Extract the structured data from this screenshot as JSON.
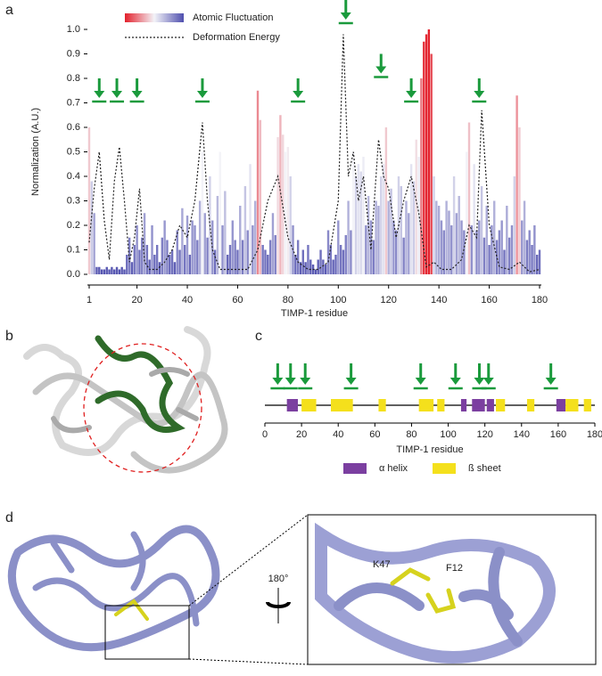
{
  "chart_data": [
    {
      "type": "bar",
      "x_label": "TIMP-1 residue",
      "y_label": "Normalization (A.U.)",
      "xlim": [
        1,
        180
      ],
      "xticks": [
        1,
        20,
        40,
        60,
        80,
        100,
        120,
        140,
        160,
        180
      ],
      "ylim": [
        0,
        1
      ],
      "yticks": [
        {
          "value": 0,
          "label": "0.0"
        },
        {
          "value": 0.1,
          "label": "0.1"
        },
        {
          "value": 0.2,
          "label": "0.2"
        },
        {
          "value": 0.3,
          "label": "0.3"
        },
        {
          "value": 0.4,
          "label": "0.4"
        },
        {
          "value": 0.5,
          "label": "0.5"
        },
        {
          "value": 0.6,
          "label": "0.6"
        },
        {
          "value": 0.7,
          "label": "0.7"
        },
        {
          "value": 0.8,
          "label": "0.8"
        },
        {
          "value": 0.9,
          "label": "0.9"
        },
        {
          "value": 1,
          "label": "1.0"
        }
      ],
      "legend": "top-left",
      "arrow_color": "#1a9a3c",
      "arrows": {
        "x": [
          5,
          12,
          20,
          46,
          84,
          103,
          117,
          129,
          156
        ],
        "y": [
          0.72,
          0.72,
          0.72,
          0.72,
          0.72,
          1.04,
          0.82,
          0.72,
          0.72
        ]
      },
      "series": [
        {
          "name": "Atomic Fluctuation",
          "type": "bar",
          "colors": [
            "#4f4fae",
            "#f3f3f8",
            "#e3202b"
          ],
          "x": [
            1,
            2,
            3,
            4,
            5,
            6,
            7,
            8,
            9,
            10,
            11,
            12,
            13,
            14,
            15,
            16,
            17,
            18,
            19,
            20,
            21,
            22,
            23,
            24,
            25,
            26,
            27,
            28,
            29,
            30,
            31,
            32,
            33,
            34,
            35,
            36,
            37,
            38,
            39,
            40,
            41,
            42,
            43,
            44,
            45,
            46,
            47,
            48,
            49,
            50,
            51,
            52,
            53,
            54,
            55,
            56,
            57,
            58,
            59,
            60,
            61,
            62,
            63,
            64,
            65,
            66,
            67,
            68,
            69,
            70,
            71,
            72,
            73,
            74,
            75,
            76,
            77,
            78,
            79,
            80,
            81,
            82,
            83,
            84,
            85,
            86,
            87,
            88,
            89,
            90,
            91,
            92,
            93,
            94,
            95,
            96,
            97,
            98,
            99,
            100,
            101,
            102,
            103,
            104,
            105,
            106,
            107,
            108,
            109,
            110,
            111,
            112,
            113,
            114,
            115,
            116,
            117,
            118,
            119,
            120,
            121,
            122,
            123,
            124,
            125,
            126,
            127,
            128,
            129,
            130,
            131,
            132,
            133,
            134,
            135,
            136,
            137,
            138,
            139,
            140,
            141,
            142,
            143,
            144,
            145,
            146,
            147,
            148,
            149,
            150,
            151,
            152,
            153,
            154,
            155,
            156,
            157,
            158,
            159,
            160,
            161,
            162,
            163,
            164,
            165,
            166,
            167,
            168,
            169,
            170,
            171,
            172,
            173,
            174,
            175,
            176,
            177,
            178,
            179,
            180
          ],
          "values": [
            0.6,
            0.38,
            0.25,
            0.03,
            0.03,
            0.02,
            0.02,
            0.03,
            0.02,
            0.03,
            0.02,
            0.03,
            0.02,
            0.03,
            0.02,
            0.08,
            0.15,
            0.05,
            0.12,
            0.2,
            0.1,
            0.15,
            0.25,
            0.12,
            0.06,
            0.2,
            0.08,
            0.12,
            0.05,
            0.15,
            0.22,
            0.14,
            0.08,
            0.1,
            0.05,
            0.18,
            0.1,
            0.27,
            0.12,
            0.24,
            0.08,
            0.22,
            0.2,
            0.14,
            0.3,
            0.5,
            0.25,
            0.15,
            0.4,
            0.22,
            0.1,
            0.32,
            0.5,
            0.2,
            0.34,
            0.08,
            0.12,
            0.22,
            0.14,
            0.1,
            0.28,
            0.14,
            0.36,
            0.18,
            0.45,
            0.2,
            0.3,
            0.75,
            0.63,
            0.12,
            0.1,
            0.08,
            0.14,
            0.25,
            0.16,
            0.56,
            0.65,
            0.57,
            0.5,
            0.52,
            0.4,
            0.2,
            0.08,
            0.14,
            0.05,
            0.1,
            0.05,
            0.12,
            0.06,
            0.04,
            0.02,
            0.06,
            0.1,
            0.06,
            0.04,
            0.18,
            0.12,
            0.06,
            0.08,
            0.22,
            0.12,
            0.1,
            0.16,
            0.3,
            0.18,
            0.5,
            0.4,
            0.45,
            0.42,
            0.48,
            0.2,
            0.32,
            0.22,
            0.14,
            0.3,
            0.28,
            0.4,
            0.45,
            0.6,
            0.3,
            0.35,
            0.22,
            0.18,
            0.4,
            0.36,
            0.15,
            0.3,
            0.25,
            0.45,
            0.38,
            0.55,
            0.48,
            0.8,
            0.95,
            0.98,
            1.0,
            0.9,
            0.4,
            0.3,
            0.28,
            0.22,
            0.18,
            0.3,
            0.26,
            0.2,
            0.4,
            0.25,
            0.32,
            0.22,
            0.18,
            0.5,
            0.62,
            0.2,
            0.45,
            0.18,
            0.22,
            0.36,
            0.15,
            0.28,
            0.12,
            0.2,
            0.3,
            0.14,
            0.18,
            0.22,
            0.1,
            0.28,
            0.15,
            0.2,
            0.4,
            0.73,
            0.6,
            0.22,
            0.3,
            0.14,
            0.18,
            0.12,
            0.2,
            0.08,
            0.1
          ]
        },
        {
          "name": "Deformation Energy",
          "type": "line",
          "color": "#222222",
          "x": [
            1,
            3,
            5,
            7,
            9,
            11,
            13,
            15,
            17,
            19,
            21,
            23,
            25,
            28,
            31,
            34,
            37,
            40,
            43,
            46,
            48,
            50,
            53,
            56,
            60,
            64,
            68,
            72,
            76,
            80,
            84,
            88,
            92,
            96,
            100,
            102,
            104,
            106,
            108,
            110,
            113,
            116,
            118,
            120,
            123,
            126,
            129,
            132,
            135,
            138,
            141,
            145,
            149,
            152,
            155,
            157,
            160,
            164,
            168,
            172,
            176,
            180
          ],
          "values": [
            0.13,
            0.35,
            0.5,
            0.22,
            0.06,
            0.38,
            0.52,
            0.3,
            0.05,
            0.15,
            0.35,
            0.05,
            0.02,
            0.02,
            0.05,
            0.1,
            0.2,
            0.15,
            0.3,
            0.62,
            0.3,
            0.1,
            0.02,
            0.02,
            0.02,
            0.02,
            0.1,
            0.3,
            0.4,
            0.15,
            0.05,
            0.02,
            0.02,
            0.05,
            0.3,
            0.98,
            0.4,
            0.5,
            0.3,
            0.4,
            0.1,
            0.55,
            0.4,
            0.35,
            0.15,
            0.3,
            0.4,
            0.25,
            0.03,
            0.05,
            0.02,
            0.02,
            0.06,
            0.2,
            0.15,
            0.67,
            0.2,
            0.03,
            0.02,
            0.05,
            0.01,
            0.02
          ]
        }
      ]
    },
    {
      "type": "track",
      "x_label": "TIMP-1 residue",
      "xlim": [
        0,
        180
      ],
      "xticks": [
        0,
        20,
        40,
        60,
        80,
        100,
        120,
        140,
        160,
        180
      ],
      "arrow_color": "#1a9a3c",
      "arrows": [
        7,
        14,
        22,
        47,
        85,
        104,
        117,
        122,
        156
      ],
      "series": [
        {
          "name": "α  helix",
          "color": "#7b3fa0",
          "ranges": [
            [
              12,
              18
            ],
            [
              107,
              110
            ],
            [
              113,
              120
            ],
            [
              121,
              125
            ],
            [
              159,
              164
            ]
          ]
        },
        {
          "name": "ß sheet",
          "color": "#f4e01c",
          "ranges": [
            [
              20,
              28
            ],
            [
              36,
              48
            ],
            [
              62,
              66
            ],
            [
              84,
              92
            ],
            [
              94,
              98
            ],
            [
              126,
              131
            ],
            [
              143,
              147
            ],
            [
              164,
              171
            ],
            [
              174,
              178
            ]
          ]
        }
      ]
    }
  ],
  "panel_labels": [
    "a",
    "b",
    "c",
    "d"
  ],
  "structure": {
    "rotation": "180°",
    "residues": [
      "K47",
      "F12"
    ]
  }
}
